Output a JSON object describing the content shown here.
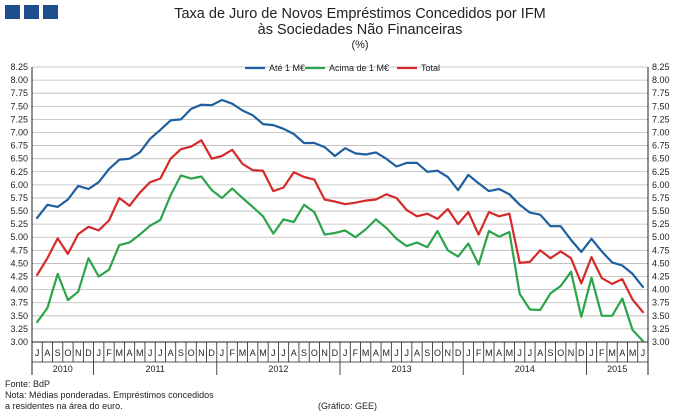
{
  "header": {
    "title_line1": "Taxa de Juro de Novos Empréstimos Concedidos por IFM",
    "title_line2": "às Sociedades Não Financeiras",
    "units": "(%)"
  },
  "footer": {
    "source": "Fonte: BdP",
    "note_line1": "Nota: Médias ponderadas.  Empréstimos concedidos",
    "note_line2": "a residentes na área do euro.",
    "credit": "(Gráfico: GEE)"
  },
  "chart_data": {
    "type": "line",
    "title": "Taxa de Juro de Novos Empréstimos Concedidos por IFM às Sociedades Não Financeiras",
    "ylabel": "(%)",
    "ylim": [
      3.0,
      8.25
    ],
    "ytick_step": 0.25,
    "legend_position": "top",
    "months": [
      "J",
      "A",
      "S",
      "O",
      "N",
      "D",
      "J",
      "F",
      "M",
      "A",
      "M",
      "J",
      "J",
      "A",
      "S",
      "O",
      "N",
      "D",
      "J",
      "F",
      "M",
      "A",
      "M",
      "J",
      "J",
      "A",
      "S",
      "O",
      "N",
      "D",
      "J",
      "F",
      "M",
      "A",
      "M",
      "J",
      "J",
      "A",
      "S",
      "O",
      "N",
      "D",
      "J",
      "F",
      "M",
      "A",
      "M",
      "J",
      "J",
      "A",
      "S",
      "O",
      "N",
      "D",
      "J",
      "F",
      "M",
      "A",
      "M",
      "J"
    ],
    "year_labels": [
      {
        "label": "2010",
        "start": 0,
        "end": 5
      },
      {
        "label": "2011",
        "start": 6,
        "end": 17
      },
      {
        "label": "2012",
        "start": 18,
        "end": 29
      },
      {
        "label": "2013",
        "start": 30,
        "end": 41
      },
      {
        "label": "2014",
        "start": 42,
        "end": 53
      },
      {
        "label": "2015",
        "start": 54,
        "end": 59
      }
    ],
    "series": [
      {
        "name": "Até 1 M€",
        "color": "#1f5fa0",
        "values": [
          5.37,
          5.62,
          5.58,
          5.72,
          5.98,
          5.92,
          6.05,
          6.3,
          6.48,
          6.5,
          6.62,
          6.88,
          7.05,
          7.23,
          7.25,
          7.45,
          7.53,
          7.52,
          7.62,
          7.55,
          7.42,
          7.33,
          7.16,
          7.14,
          7.07,
          6.97,
          6.8,
          6.8,
          6.72,
          6.55,
          6.7,
          6.6,
          6.58,
          6.62,
          6.5,
          6.35,
          6.42,
          6.42,
          6.25,
          6.27,
          6.15,
          5.9,
          6.19,
          6.03,
          5.88,
          5.92,
          5.82,
          5.62,
          5.47,
          5.43,
          5.21,
          5.21,
          4.95,
          4.72,
          4.97,
          4.73,
          4.52,
          4.46,
          4.3,
          4.05
        ]
      },
      {
        "name": "Acima de 1 M€",
        "color": "#2ca44a",
        "values": [
          3.38,
          3.65,
          4.3,
          3.8,
          3.96,
          4.6,
          4.25,
          4.38,
          4.85,
          4.9,
          5.05,
          5.22,
          5.33,
          5.8,
          6.18,
          6.12,
          6.16,
          5.9,
          5.75,
          5.93,
          5.75,
          5.58,
          5.4,
          5.07,
          5.34,
          5.29,
          5.62,
          5.48,
          5.05,
          5.08,
          5.13,
          5.0,
          5.15,
          5.34,
          5.18,
          4.97,
          4.83,
          4.9,
          4.81,
          5.12,
          4.75,
          4.63,
          4.88,
          4.48,
          5.12,
          5.01,
          5.1,
          3.92,
          3.62,
          3.61,
          3.93,
          4.07,
          4.34,
          3.48,
          4.23,
          3.5,
          3.5,
          3.83,
          3.23,
          3.02
        ]
      },
      {
        "name": "Total",
        "color": "#d42a2a",
        "values": [
          4.28,
          4.6,
          4.98,
          4.68,
          5.06,
          5.2,
          5.13,
          5.32,
          5.75,
          5.6,
          5.85,
          6.05,
          6.12,
          6.5,
          6.68,
          6.73,
          6.85,
          6.5,
          6.55,
          6.67,
          6.4,
          6.28,
          6.27,
          5.88,
          5.95,
          6.24,
          6.15,
          6.1,
          5.72,
          5.68,
          5.63,
          5.66,
          5.7,
          5.72,
          5.82,
          5.75,
          5.52,
          5.4,
          5.45,
          5.35,
          5.54,
          5.25,
          5.48,
          5.05,
          5.48,
          5.4,
          5.45,
          4.51,
          4.53,
          4.75,
          4.6,
          4.73,
          4.6,
          4.12,
          4.62,
          4.22,
          4.11,
          4.2,
          3.81,
          3.57
        ]
      }
    ]
  }
}
